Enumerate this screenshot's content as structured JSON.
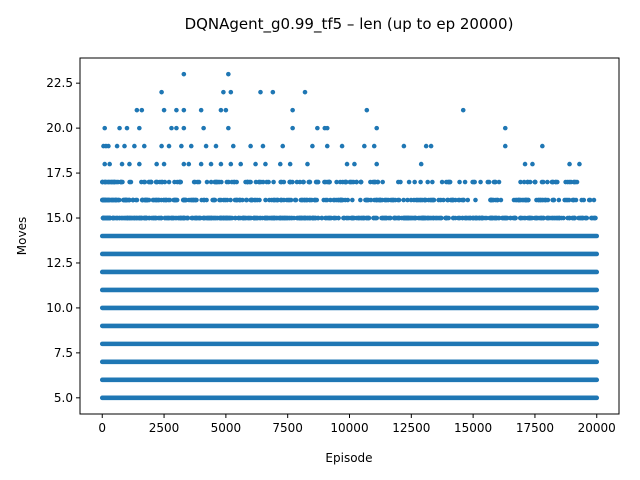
{
  "chart_data": {
    "type": "scatter",
    "title": "DQNAgent_g0.99_tf5 – len (up to ep 20000)",
    "xlabel": "Episode",
    "ylabel": "Moves",
    "xlim": [
      -900,
      20900
    ],
    "ylim": [
      4.1,
      23.9
    ],
    "xticks": [
      0,
      2500,
      5000,
      7500,
      10000,
      12500,
      15000,
      17500,
      20000
    ],
    "xtick_labels": [
      "0",
      "2500",
      "5000",
      "7500",
      "10000",
      "12500",
      "15000",
      "17500",
      "20000"
    ],
    "yticks": [
      5.0,
      7.5,
      10.0,
      12.5,
      15.0,
      17.5,
      20.0,
      22.5
    ],
    "ytick_labels": [
      "5.0",
      "7.5",
      "10.0",
      "12.5",
      "15.0",
      "17.5",
      "20.0",
      "22.5"
    ],
    "grid": false,
    "marker_color": "#1f77b4",
    "x_range": [
      0,
      20000
    ],
    "dense_bands": [
      {
        "y": 5,
        "x_start": 0,
        "x_end": 20000
      },
      {
        "y": 6,
        "x_start": 0,
        "x_end": 20000
      },
      {
        "y": 7,
        "x_start": 0,
        "x_end": 20000
      },
      {
        "y": 8,
        "x_start": 0,
        "x_end": 20000
      },
      {
        "y": 9,
        "x_start": 0,
        "x_end": 20000
      },
      {
        "y": 10,
        "x_start": 0,
        "x_end": 20000
      },
      {
        "y": 11,
        "x_start": 0,
        "x_end": 20000
      },
      {
        "y": 12,
        "x_start": 0,
        "x_end": 20000
      },
      {
        "y": 13,
        "x_start": 0,
        "x_end": 20000
      },
      {
        "y": 14,
        "x_start": 0,
        "x_end": 20000
      }
    ],
    "semi_dense_bands": [
      {
        "y": 15,
        "x_start": 0,
        "x_end": 20000,
        "density": 0.65
      },
      {
        "y": 16,
        "x_start": 0,
        "x_end": 20000,
        "density": 0.35
      },
      {
        "y": 17,
        "x_start": 0,
        "x_end": 20000,
        "density": 0.2
      }
    ],
    "sparse_points": [
      [
        100,
        18
      ],
      [
        300,
        18
      ],
      [
        800,
        18
      ],
      [
        1100,
        18
      ],
      [
        1500,
        18
      ],
      [
        2200,
        18
      ],
      [
        2500,
        18
      ],
      [
        3300,
        18
      ],
      [
        3500,
        18
      ],
      [
        4000,
        18
      ],
      [
        4400,
        18
      ],
      [
        4800,
        18
      ],
      [
        5200,
        18
      ],
      [
        5600,
        18
      ],
      [
        6200,
        18
      ],
      [
        6600,
        18
      ],
      [
        7200,
        18
      ],
      [
        7600,
        18
      ],
      [
        8300,
        18
      ],
      [
        9900,
        18
      ],
      [
        10200,
        18
      ],
      [
        11100,
        18
      ],
      [
        12900,
        18
      ],
      [
        17100,
        18
      ],
      [
        17400,
        18
      ],
      [
        18900,
        18
      ],
      [
        19300,
        18
      ],
      [
        50,
        19
      ],
      [
        150,
        19
      ],
      [
        250,
        19
      ],
      [
        600,
        19
      ],
      [
        900,
        19
      ],
      [
        1300,
        19
      ],
      [
        1700,
        19
      ],
      [
        2400,
        19
      ],
      [
        2700,
        19
      ],
      [
        3200,
        19
      ],
      [
        3600,
        19
      ],
      [
        4200,
        19
      ],
      [
        4600,
        19
      ],
      [
        5300,
        19
      ],
      [
        6000,
        19
      ],
      [
        6500,
        19
      ],
      [
        7300,
        19
      ],
      [
        8500,
        19
      ],
      [
        9100,
        19
      ],
      [
        9700,
        19
      ],
      [
        10600,
        19
      ],
      [
        11000,
        19
      ],
      [
        12200,
        19
      ],
      [
        13100,
        19
      ],
      [
        13300,
        19
      ],
      [
        16300,
        19
      ],
      [
        17800,
        19
      ],
      [
        100,
        20
      ],
      [
        700,
        20
      ],
      [
        1000,
        20
      ],
      [
        1500,
        20
      ],
      [
        2800,
        20
      ],
      [
        3000,
        20
      ],
      [
        3300,
        20
      ],
      [
        4100,
        20
      ],
      [
        5100,
        20
      ],
      [
        7700,
        20
      ],
      [
        8700,
        20
      ],
      [
        9000,
        20
      ],
      [
        9100,
        20
      ],
      [
        11100,
        20
      ],
      [
        16300,
        20
      ],
      [
        1400,
        21
      ],
      [
        1600,
        21
      ],
      [
        2500,
        21
      ],
      [
        3000,
        21
      ],
      [
        3300,
        21
      ],
      [
        4000,
        21
      ],
      [
        4800,
        21
      ],
      [
        5000,
        21
      ],
      [
        7700,
        21
      ],
      [
        10700,
        21
      ],
      [
        14600,
        21
      ],
      [
        2400,
        22
      ],
      [
        4900,
        22
      ],
      [
        5200,
        22
      ],
      [
        6400,
        22
      ],
      [
        6900,
        22
      ],
      [
        8200,
        22
      ],
      [
        3300,
        23
      ],
      [
        5100,
        23
      ]
    ]
  }
}
